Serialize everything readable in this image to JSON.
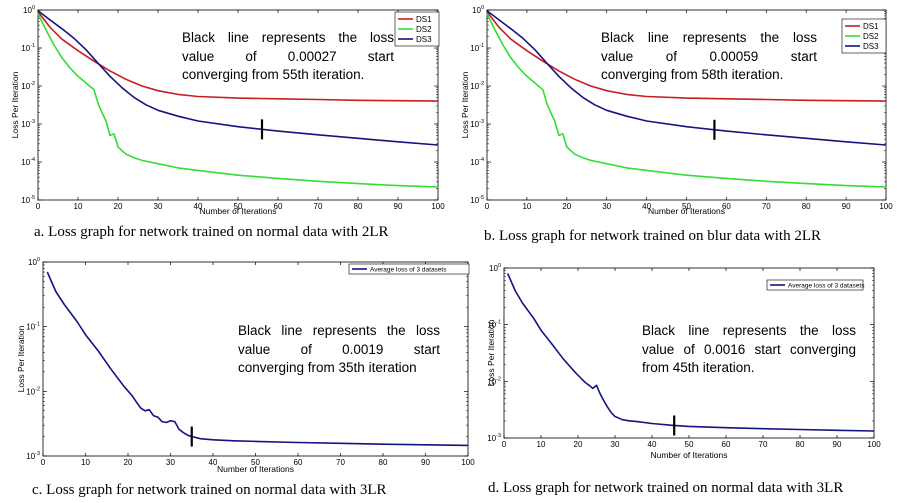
{
  "captions": [
    "a. Loss graph for network trained on normal data with 2LR",
    "b. Loss graph for network trained on blur data with 2LR",
    "c. Loss graph for network trained on normal data with 3LR",
    "d. Loss graph for network trained on normal data with 3LR"
  ],
  "notes": [
    [
      "Black line represents the loss",
      "value of 0.00027 start",
      "converging from 55th iteration."
    ],
    [
      "Black line represents the loss",
      "value of 0.00059 start",
      "converging from 58th iteration."
    ],
    [
      "Black line represents the loss",
      "value of 0.0019 start",
      "converging from 35th iteration"
    ],
    [
      "Black line represents the loss",
      "value of 0.0016 start converging",
      "from 45th iteration."
    ]
  ],
  "colors": {
    "DS1": "#c81e1e",
    "DS2": "#33dd33",
    "DS3": "#141482",
    "avg": "#141482",
    "marker": "#000000"
  },
  "chart_data": [
    {
      "type": "line",
      "title": "",
      "xlabel": "Number of Iterations",
      "ylabel": "Loss Per Iteration",
      "xlim": [
        0,
        100
      ],
      "ylim_log10": [
        -5,
        0
      ],
      "xticks": [
        0,
        10,
        20,
        30,
        40,
        50,
        60,
        70,
        80,
        90,
        100
      ],
      "yticks": [
        {
          "base": "10",
          "exp": "0"
        },
        {
          "base": "10",
          "exp": "-1"
        },
        {
          "base": "10",
          "exp": "-2"
        },
        {
          "base": "10",
          "exp": "-3"
        },
        {
          "base": "10",
          "exp": "-4"
        },
        {
          "base": "10",
          "exp": "-5"
        }
      ],
      "legend": "top-right",
      "marker_x": 56,
      "series": [
        {
          "name": "DS1",
          "x": [
            0,
            3,
            6,
            10,
            14,
            18,
            22,
            26,
            30,
            35,
            40,
            50,
            60,
            70,
            80,
            90,
            100
          ],
          "y": [
            0.9,
            0.35,
            0.17,
            0.085,
            0.045,
            0.025,
            0.015,
            0.01,
            0.0075,
            0.006,
            0.0053,
            0.0048,
            0.0046,
            0.0044,
            0.0042,
            0.0041,
            0.004
          ]
        },
        {
          "name": "DS2",
          "x": [
            0,
            2,
            4,
            6,
            8,
            10,
            12,
            14,
            15,
            16,
            17,
            18,
            19,
            20,
            21,
            22,
            24,
            26,
            30,
            35,
            40,
            50,
            60,
            70,
            80,
            90,
            100
          ],
          "y": [
            0.8,
            0.3,
            0.12,
            0.055,
            0.03,
            0.018,
            0.012,
            0.008,
            0.0035,
            0.002,
            0.0012,
            0.0005,
            0.00055,
            0.00025,
            0.0002,
            0.00016,
            0.00013,
            0.00011,
            9e-05,
            7e-05,
            6e-05,
            4.5e-05,
            3.7e-05,
            3.1e-05,
            2.7e-05,
            2.4e-05,
            2.2e-05
          ]
        },
        {
          "name": "DS3",
          "x": [
            0,
            3,
            6,
            9,
            12,
            15,
            18,
            21,
            24,
            27,
            30,
            35,
            40,
            50,
            60,
            70,
            80,
            90,
            100
          ],
          "y": [
            0.95,
            0.55,
            0.32,
            0.18,
            0.09,
            0.04,
            0.018,
            0.009,
            0.005,
            0.0032,
            0.0023,
            0.0016,
            0.0012,
            0.00085,
            0.00065,
            0.00052,
            0.00042,
            0.00034,
            0.00028
          ]
        }
      ]
    },
    {
      "type": "line",
      "title": "",
      "xlabel": "Number of Iterations",
      "ylabel": "Loss Per Iteration",
      "xlim": [
        0,
        100
      ],
      "ylim_log10": [
        -5,
        0
      ],
      "xticks": [
        0,
        10,
        20,
        30,
        40,
        50,
        60,
        70,
        80,
        90,
        100
      ],
      "yticks": [
        {
          "base": "10",
          "exp": "0"
        },
        {
          "base": "10",
          "exp": "-1"
        },
        {
          "base": "10",
          "exp": "-2"
        },
        {
          "base": "10",
          "exp": "-3"
        },
        {
          "base": "10",
          "exp": "-4"
        },
        {
          "base": "10",
          "exp": "-5"
        }
      ],
      "legend": "top-right",
      "marker_x": 57,
      "series": [
        {
          "name": "DS1",
          "x": [
            0,
            3,
            6,
            10,
            14,
            18,
            22,
            26,
            30,
            35,
            40,
            50,
            60,
            70,
            80,
            90,
            100
          ],
          "y": [
            0.9,
            0.35,
            0.17,
            0.085,
            0.045,
            0.025,
            0.015,
            0.01,
            0.0075,
            0.006,
            0.0053,
            0.0048,
            0.0046,
            0.0044,
            0.0042,
            0.0041,
            0.004
          ]
        },
        {
          "name": "DS2",
          "x": [
            0,
            2,
            4,
            6,
            8,
            10,
            12,
            14,
            15,
            16,
            17,
            18,
            19,
            20,
            21,
            22,
            24,
            26,
            30,
            35,
            40,
            50,
            60,
            70,
            80,
            90,
            100
          ],
          "y": [
            0.8,
            0.3,
            0.12,
            0.055,
            0.03,
            0.018,
            0.012,
            0.008,
            0.0035,
            0.002,
            0.0012,
            0.0005,
            0.00055,
            0.00025,
            0.0002,
            0.00016,
            0.00013,
            0.00011,
            9e-05,
            7e-05,
            6e-05,
            4.5e-05,
            3.7e-05,
            3.1e-05,
            2.7e-05,
            2.4e-05,
            2.2e-05
          ]
        },
        {
          "name": "DS3",
          "x": [
            0,
            3,
            6,
            9,
            12,
            15,
            18,
            21,
            24,
            27,
            30,
            35,
            40,
            50,
            60,
            70,
            80,
            90,
            100
          ],
          "y": [
            0.95,
            0.55,
            0.32,
            0.18,
            0.09,
            0.04,
            0.018,
            0.009,
            0.005,
            0.0032,
            0.0023,
            0.0016,
            0.0012,
            0.00085,
            0.00065,
            0.00052,
            0.00042,
            0.00034,
            0.00028
          ]
        }
      ]
    },
    {
      "type": "line",
      "title": "",
      "xlabel": "Number of Iterations",
      "ylabel": "Loss Per Iteration",
      "xlim": [
        0,
        100
      ],
      "ylim_log10": [
        -3,
        0
      ],
      "xticks": [
        0,
        10,
        20,
        30,
        40,
        50,
        60,
        70,
        80,
        90,
        100
      ],
      "yticks": [
        {
          "base": "10",
          "exp": "0"
        },
        {
          "base": "10",
          "exp": "-1"
        },
        {
          "base": "10",
          "exp": "-2"
        },
        {
          "base": "10",
          "exp": "-3"
        }
      ],
      "legend": "top-right",
      "marker_x": 35,
      "series": [
        {
          "name": "Average loss of 3 datasets",
          "x": [
            1,
            3,
            5,
            8,
            10,
            13,
            16,
            19,
            21,
            22,
            23,
            24,
            25,
            26,
            27,
            28,
            29,
            30,
            31,
            32,
            33,
            34,
            35,
            37,
            40,
            45,
            50,
            60,
            70,
            80,
            90,
            100
          ],
          "y": [
            0.7,
            0.35,
            0.22,
            0.12,
            0.075,
            0.042,
            0.022,
            0.012,
            0.0085,
            0.0068,
            0.0055,
            0.005,
            0.0052,
            0.0042,
            0.004,
            0.0034,
            0.0033,
            0.0035,
            0.0034,
            0.0026,
            0.0023,
            0.0021,
            0.002,
            0.00185,
            0.00178,
            0.00172,
            0.00168,
            0.00162,
            0.00157,
            0.00152,
            0.00149,
            0.00146
          ]
        }
      ]
    },
    {
      "type": "line",
      "title": "",
      "xlabel": "Number of Iterations",
      "ylabel": "Loss Per Iteration",
      "xlim": [
        0,
        100
      ],
      "ylim_log10": [
        -3,
        0
      ],
      "xticks": [
        0,
        10,
        20,
        30,
        40,
        50,
        60,
        70,
        80,
        90,
        100
      ],
      "yticks": [
        {
          "base": "10",
          "exp": "0"
        },
        {
          "base": "10",
          "exp": "-1"
        },
        {
          "base": "10",
          "exp": "-2"
        },
        {
          "base": "10",
          "exp": "-3"
        }
      ],
      "legend": "top-right",
      "marker_x": 46,
      "series": [
        {
          "name": "Average loss of 3 datasets",
          "x": [
            1,
            3,
            5,
            8,
            10,
            13,
            16,
            19,
            21,
            22,
            23,
            24,
            25,
            26,
            27,
            28,
            29,
            30,
            32,
            34,
            36,
            40,
            45,
            50,
            60,
            70,
            80,
            90,
            100
          ],
          "y": [
            0.8,
            0.4,
            0.24,
            0.13,
            0.08,
            0.045,
            0.025,
            0.015,
            0.011,
            0.0095,
            0.0085,
            0.0075,
            0.0085,
            0.006,
            0.0045,
            0.0035,
            0.0028,
            0.0024,
            0.0021,
            0.002,
            0.00195,
            0.0018,
            0.00168,
            0.0016,
            0.00152,
            0.00146,
            0.00141,
            0.00137,
            0.00133
          ]
        }
      ]
    }
  ]
}
